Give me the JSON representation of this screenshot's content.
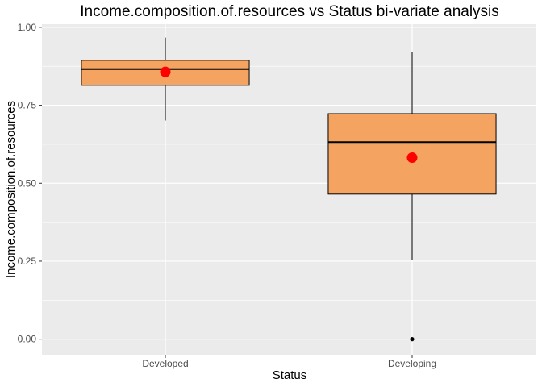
{
  "chart_data": {
    "type": "boxplot",
    "title": "Income.composition.of.resources vs Status bi-variate analysis",
    "xlabel": "Status",
    "ylabel": "Income.composition.of.resources",
    "categories": [
      "Developed",
      "Developing"
    ],
    "ylim": [
      -0.05,
      1.01
    ],
    "yticks": [
      0.0,
      0.25,
      0.5,
      0.75,
      1.0
    ],
    "ytick_labels": [
      "0.00",
      "0.25",
      "0.50",
      "0.75",
      "1.00"
    ],
    "grid": true,
    "legend": "none",
    "boxes": [
      {
        "category": "Developed",
        "whisker_low": 0.701,
        "q1": 0.814,
        "median": 0.866,
        "q3": 0.894,
        "whisker_high": 0.967,
        "mean": 0.857,
        "outliers": []
      },
      {
        "category": "Developing",
        "whisker_low": 0.254,
        "q1": 0.465,
        "median": 0.632,
        "q3": 0.723,
        "whisker_high": 0.922,
        "mean": 0.582,
        "outliers": [
          0.0
        ]
      }
    ],
    "colors": {
      "box_fill": "#F4A460",
      "mean_point": "#FF0000",
      "panel_background": "#EBEBEB",
      "grid": "#FFFFFF"
    }
  }
}
